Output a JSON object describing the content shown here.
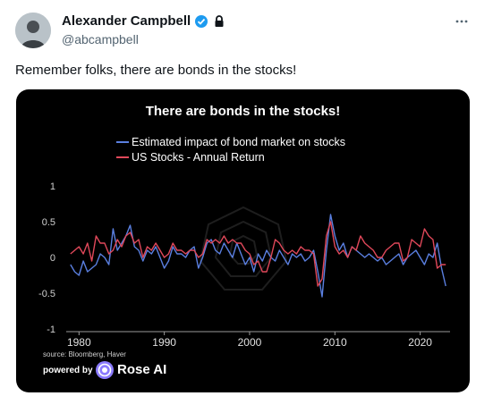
{
  "tweet": {
    "display_name": "Alexander Campbell",
    "handle": "@abcampbell",
    "text": "Remember folks, there are bonds in the stocks!",
    "icons": [
      "verified-icon",
      "lock-icon",
      "more-icon"
    ],
    "colors": {
      "verified": "#1d9bf0",
      "name": "#0f1419",
      "handle": "#536471"
    }
  },
  "media": {
    "source": "source: Bloomberg, Haver",
    "powered_by": "powered by",
    "brand": "Rose AI",
    "colors": {
      "background": "#000000",
      "logo": "#8b7bff"
    }
  },
  "chart_data": {
    "type": "line",
    "title": "There are bonds in the stocks!",
    "xlabel": "",
    "ylabel": "",
    "xlim": [
      1978.5,
      2023.5
    ],
    "ylim": [
      -1,
      1
    ],
    "xticks": [
      "1980",
      "1990",
      "2000",
      "2010",
      "2020"
    ],
    "yticks": [
      "1",
      "0.5",
      "0",
      "-0.5",
      "-1"
    ],
    "grid": false,
    "legend_position": "top-center",
    "series": [
      {
        "name": "Estimated impact of bond market on stocks",
        "color": "#5a7fe0",
        "x": [
          1979.0,
          1979.5,
          1980.0,
          1980.5,
          1981.0,
          1981.5,
          1982.0,
          1982.5,
          1983.0,
          1983.5,
          1984.0,
          1984.5,
          1985.0,
          1985.5,
          1986.0,
          1986.5,
          1987.0,
          1987.5,
          1988.0,
          1988.5,
          1989.0,
          1989.5,
          1990.0,
          1990.5,
          1991.0,
          1991.5,
          1992.0,
          1992.5,
          1993.0,
          1993.5,
          1994.0,
          1994.5,
          1995.0,
          1995.5,
          1996.0,
          1996.5,
          1997.0,
          1997.5,
          1998.0,
          1998.5,
          1999.0,
          1999.5,
          2000.0,
          2000.5,
          2001.0,
          2001.5,
          2002.0,
          2002.5,
          2003.0,
          2003.5,
          2004.0,
          2004.5,
          2005.0,
          2005.5,
          2006.0,
          2006.5,
          2007.0,
          2007.5,
          2008.0,
          2008.5,
          2009.0,
          2009.5,
          2010.0,
          2010.5,
          2011.0,
          2011.5,
          2012.0,
          2012.5,
          2013.0,
          2013.5,
          2014.0,
          2014.5,
          2015.0,
          2015.5,
          2016.0,
          2016.5,
          2017.0,
          2017.5,
          2018.0,
          2018.5,
          2019.0,
          2019.5,
          2020.0,
          2020.5,
          2021.0,
          2021.5,
          2022.0,
          2022.5,
          2023.0
        ],
        "values": [
          -0.1,
          -0.2,
          -0.25,
          -0.05,
          -0.2,
          -0.15,
          -0.1,
          0.05,
          0.0,
          -0.1,
          0.4,
          0.1,
          0.2,
          0.3,
          0.45,
          0.15,
          0.1,
          -0.05,
          0.1,
          0.05,
          0.15,
          0.0,
          -0.15,
          -0.05,
          0.15,
          0.05,
          0.05,
          0.0,
          0.1,
          0.15,
          -0.15,
          0.0,
          0.2,
          0.25,
          0.1,
          0.05,
          0.2,
          0.1,
          0.0,
          0.2,
          0.05,
          -0.1,
          0.0,
          -0.2,
          0.05,
          -0.05,
          0.1,
          0.0,
          -0.05,
          0.1,
          0.0,
          -0.1,
          0.05,
          0.0,
          0.05,
          -0.05,
          0.0,
          0.1,
          -0.2,
          -0.55,
          0.1,
          0.6,
          0.3,
          0.1,
          0.2,
          0.0,
          0.15,
          0.1,
          0.05,
          0.0,
          0.05,
          0.0,
          -0.05,
          0.0,
          -0.1,
          -0.05,
          0.0,
          0.05,
          -0.1,
          0.0,
          0.05,
          0.1,
          0.0,
          -0.1,
          0.05,
          0.0,
          0.2,
          -0.15,
          -0.4
        ]
      },
      {
        "name": "US Stocks - Annual Return",
        "color": "#e0485a",
        "x": [
          1979.0,
          1979.5,
          1980.0,
          1980.5,
          1981.0,
          1981.5,
          1982.0,
          1982.5,
          1983.0,
          1983.5,
          1984.0,
          1984.5,
          1985.0,
          1985.5,
          1986.0,
          1986.5,
          1987.0,
          1987.5,
          1988.0,
          1988.5,
          1989.0,
          1989.5,
          1990.0,
          1990.5,
          1991.0,
          1991.5,
          1992.0,
          1992.5,
          1993.0,
          1993.5,
          1994.0,
          1994.5,
          1995.0,
          1995.5,
          1996.0,
          1996.5,
          1997.0,
          1997.5,
          1998.0,
          1998.5,
          1999.0,
          1999.5,
          2000.0,
          2000.5,
          2001.0,
          2001.5,
          2002.0,
          2002.5,
          2003.0,
          2003.5,
          2004.0,
          2004.5,
          2005.0,
          2005.5,
          2006.0,
          2006.5,
          2007.0,
          2007.5,
          2008.0,
          2008.5,
          2009.0,
          2009.5,
          2010.0,
          2010.5,
          2011.0,
          2011.5,
          2012.0,
          2012.5,
          2013.0,
          2013.5,
          2014.0,
          2014.5,
          2015.0,
          2015.5,
          2016.0,
          2016.5,
          2017.0,
          2017.5,
          2018.0,
          2018.5,
          2019.0,
          2019.5,
          2020.0,
          2020.5,
          2021.0,
          2021.5,
          2022.0,
          2022.5,
          2023.0
        ],
        "values": [
          0.05,
          0.1,
          0.15,
          0.05,
          0.2,
          -0.05,
          0.3,
          0.2,
          0.2,
          0.05,
          0.1,
          0.25,
          0.15,
          0.3,
          0.35,
          0.2,
          0.25,
          0.0,
          0.15,
          0.1,
          0.2,
          0.1,
          0.0,
          0.05,
          0.2,
          0.1,
          0.1,
          0.05,
          0.1,
          0.1,
          0.0,
          0.05,
          0.25,
          0.2,
          0.25,
          0.2,
          0.3,
          0.2,
          0.25,
          0.2,
          0.2,
          0.1,
          0.05,
          -0.1,
          -0.05,
          -0.2,
          -0.2,
          0.0,
          0.25,
          0.2,
          0.1,
          0.05,
          0.1,
          0.05,
          0.15,
          0.1,
          0.1,
          0.05,
          -0.4,
          -0.3,
          0.3,
          0.5,
          0.15,
          0.05,
          0.1,
          0.0,
          0.15,
          0.1,
          0.3,
          0.2,
          0.15,
          0.1,
          0.0,
          0.0,
          0.1,
          0.15,
          0.2,
          0.2,
          -0.05,
          0.0,
          0.25,
          0.2,
          0.15,
          0.4,
          0.3,
          0.25,
          -0.15,
          -0.1,
          -0.1
        ]
      }
    ]
  }
}
